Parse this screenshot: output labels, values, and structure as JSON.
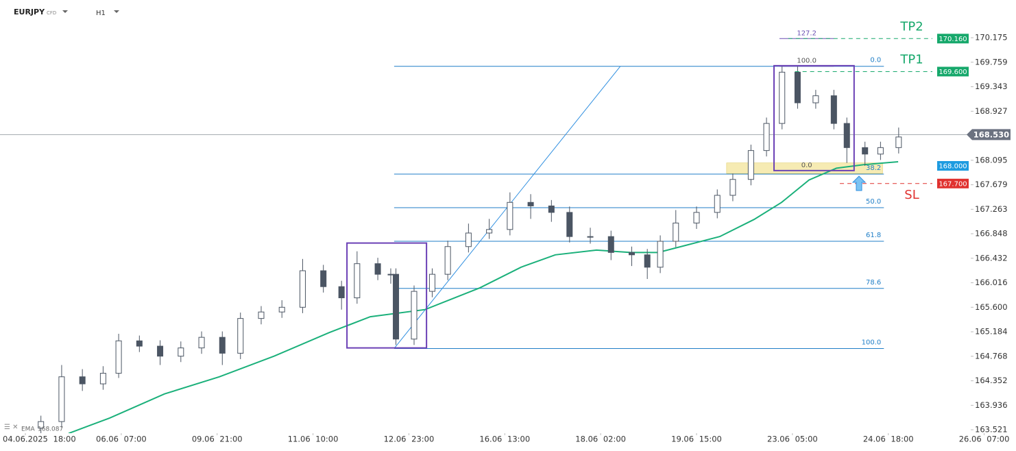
{
  "chart_data": {
    "type": "candlestick",
    "symbol": "EURJPY",
    "instrument": "CFD",
    "timeframe": "H1",
    "xlim": [
      -9.79,
      382.28
    ],
    "ylim": [
      163.463,
      170.815
    ],
    "xticks": [
      {
        "value": 0,
        "label": "04.06.2025 18:00"
      },
      {
        "value": 37,
        "label": "06.06 07:00"
      },
      {
        "value": 74,
        "label": "09.06 21:00"
      },
      {
        "value": 111,
        "label": "11.06 10:00"
      },
      {
        "value": 148,
        "label": "12.06 23:00"
      },
      {
        "value": 185,
        "label": "16.06 13:00"
      },
      {
        "value": 222,
        "label": "18.06 02:00"
      },
      {
        "value": 259,
        "label": "19.06 15:00"
      },
      {
        "value": 296,
        "label": "23.06 05:00"
      },
      {
        "value": 333,
        "label": "24.06 18:00"
      },
      {
        "value": 370,
        "label": "26.06 07:00"
      }
    ],
    "yticks": [
      {
        "value": 170.175,
        "label": "170.175"
      },
      {
        "value": 169.759,
        "label": "169.759"
      },
      {
        "value": 169.343,
        "label": "169.343"
      },
      {
        "value": 168.927,
        "label": "168.927"
      },
      {
        "value": 168.095,
        "label": "168.095"
      },
      {
        "value": 167.679,
        "label": "167.679"
      },
      {
        "value": 167.263,
        "label": "167.263"
      },
      {
        "value": 166.848,
        "label": "166.848"
      },
      {
        "value": 166.432,
        "label": "166.432"
      },
      {
        "value": 166.016,
        "label": "166.016"
      },
      {
        "value": 165.6,
        "label": "165.600"
      },
      {
        "value": 165.184,
        "label": "165.184"
      },
      {
        "value": 164.768,
        "label": "164.768"
      },
      {
        "value": 164.352,
        "label": "164.352"
      },
      {
        "value": 163.936,
        "label": "163.936"
      },
      {
        "value": 163.521,
        "label": "163.521"
      }
    ],
    "x": [
      6,
      14,
      22,
      30,
      36,
      44,
      52,
      60,
      68,
      76,
      83,
      91,
      99,
      107,
      115,
      122,
      128,
      136,
      141,
      143,
      150,
      157,
      163,
      171,
      179,
      187,
      195,
      203,
      210,
      218,
      226,
      234,
      240,
      245,
      251,
      259,
      267,
      273,
      280,
      286,
      292,
      298,
      305,
      312,
      317,
      324,
      330,
      337
    ],
    "open": [
      163.55,
      163.66,
      164.42,
      164.3,
      164.48,
      165.03,
      164.94,
      164.77,
      164.91,
      165.09,
      164.82,
      165.41,
      165.52,
      165.6,
      166.22,
      165.95,
      165.76,
      166.34,
      166.16,
      166.16,
      165.06,
      165.87,
      166.16,
      166.63,
      166.86,
      166.92,
      167.38,
      167.32,
      167.21,
      166.8,
      166.8,
      166.53,
      166.49,
      166.28,
      166.72,
      167.03,
      167.21,
      167.5,
      167.77,
      168.26,
      168.72,
      169.59,
      169.07,
      169.19,
      168.72,
      168.31,
      168.2,
      168.31
    ],
    "high": [
      163.76,
      164.62,
      164.55,
      164.6,
      165.15,
      165.12,
      165.04,
      165.02,
      165.19,
      165.19,
      165.51,
      165.62,
      165.72,
      166.42,
      166.32,
      166.05,
      166.55,
      166.44,
      166.26,
      166.26,
      165.97,
      166.26,
      166.73,
      167.02,
      167.1,
      167.55,
      167.52,
      167.42,
      167.31,
      166.95,
      166.9,
      166.63,
      166.59,
      166.82,
      167.25,
      167.31,
      167.6,
      167.87,
      168.36,
      168.82,
      169.7,
      169.69,
      169.29,
      169.29,
      168.82,
      168.41,
      168.41,
      168.65
    ],
    "low": [
      163.45,
      163.56,
      164.18,
      164.2,
      164.4,
      164.84,
      164.62,
      164.67,
      164.81,
      164.62,
      164.72,
      165.31,
      165.42,
      165.5,
      165.85,
      165.56,
      165.66,
      166.06,
      166.0,
      164.96,
      164.96,
      165.77,
      166.06,
      166.53,
      166.76,
      166.82,
      167.1,
      167.05,
      166.7,
      166.68,
      166.4,
      166.3,
      166.08,
      166.18,
      166.62,
      166.93,
      167.11,
      167.4,
      167.67,
      168.16,
      168.62,
      168.97,
      168.97,
      168.62,
      168.05,
      168.0,
      168.1,
      168.21
    ],
    "close": [
      163.66,
      164.42,
      164.3,
      164.48,
      165.03,
      164.94,
      164.77,
      164.91,
      165.09,
      164.82,
      165.41,
      165.52,
      165.6,
      166.22,
      165.95,
      165.76,
      166.34,
      166.16,
      166.16,
      165.06,
      165.87,
      166.16,
      166.63,
      166.86,
      166.92,
      167.38,
      167.32,
      167.21,
      166.8,
      166.8,
      166.53,
      166.49,
      166.28,
      166.72,
      167.03,
      167.21,
      167.5,
      167.77,
      168.26,
      168.72,
      169.59,
      169.07,
      169.19,
      168.72,
      168.31,
      168.2,
      168.31,
      168.49
    ],
    "up_color": "#ffffff",
    "down_color": "#4b5563",
    "wick_color": "#4b5563",
    "ema": {
      "name": "EMA",
      "value": 168.087,
      "color": "#1ab07a",
      "x": [
        16.7,
        32.5,
        53.7,
        74.9,
        96.0,
        117.2,
        133.1,
        154.2,
        175.4,
        191.3,
        204.5,
        220.4,
        233.6,
        244.2,
        254.8,
        268.0,
        281.2,
        291.8,
        302.4,
        313.0,
        323.5,
        336.8
      ],
      "values": [
        163.46,
        163.72,
        164.13,
        164.42,
        164.77,
        165.17,
        165.44,
        165.56,
        165.93,
        166.28,
        166.49,
        166.57,
        166.53,
        166.53,
        166.65,
        166.8,
        167.09,
        167.38,
        167.76,
        167.96,
        168.02,
        168.07
      ]
    },
    "current_price": {
      "value": 168.53,
      "label": "168.530",
      "color": "#6b7280"
    },
    "trendline": {
      "x": [
        142.3,
        229.6
      ],
      "y": [
        164.9,
        169.69
      ],
      "color": "#2f8fe0"
    },
    "fib": {
      "color": "#1f7ec7",
      "x": [
        142.3,
        331.3
      ],
      "levels": [
        {
          "label": "0.0",
          "price": 169.69
        },
        {
          "label": "38.2",
          "price": 167.86
        },
        {
          "label": "50.0",
          "price": 167.29
        },
        {
          "label": "61.8",
          "price": 166.72
        },
        {
          "label": "78.6",
          "price": 165.92
        },
        {
          "label": "100.0",
          "price": 164.9
        }
      ]
    },
    "fib2": {
      "color": "#6b4fb3",
      "x": [
        291,
        312
      ],
      "levels": [
        {
          "label": "127.2",
          "price": 170.16
        },
        {
          "label": "100.0",
          "price": 169.69
        },
        {
          "label": "0.0",
          "price": 167.92
        }
      ]
    },
    "box_color": "#6a3fb5",
    "boxes": [
      {
        "x": [
          124.1,
          154.8
        ],
        "y": [
          164.91,
          166.69
        ]
      },
      {
        "x": [
          288.9,
          319.8
        ],
        "y": [
          167.92,
          169.7
        ]
      }
    ],
    "zone": {
      "x": [
        270.6,
        330.8
      ],
      "y": [
        167.87,
        168.05
      ],
      "color": "#f3e49a"
    },
    "levels": [
      {
        "name": "TP2",
        "value": 170.16,
        "label": "170.160",
        "color": "#16a86b",
        "x": [
          294.4,
          350
        ]
      },
      {
        "name": "TP1",
        "value": 169.6,
        "label": "169.600",
        "color": "#16a86b",
        "x": [
          297,
          350
        ]
      },
      {
        "value": 168.0,
        "label": "168.000",
        "color": "#1e9be0"
      },
      {
        "name": "SL",
        "value": 167.7,
        "label": "167.700",
        "color": "#e0312f",
        "x": [
          314.3,
          350
        ]
      }
    ]
  }
}
